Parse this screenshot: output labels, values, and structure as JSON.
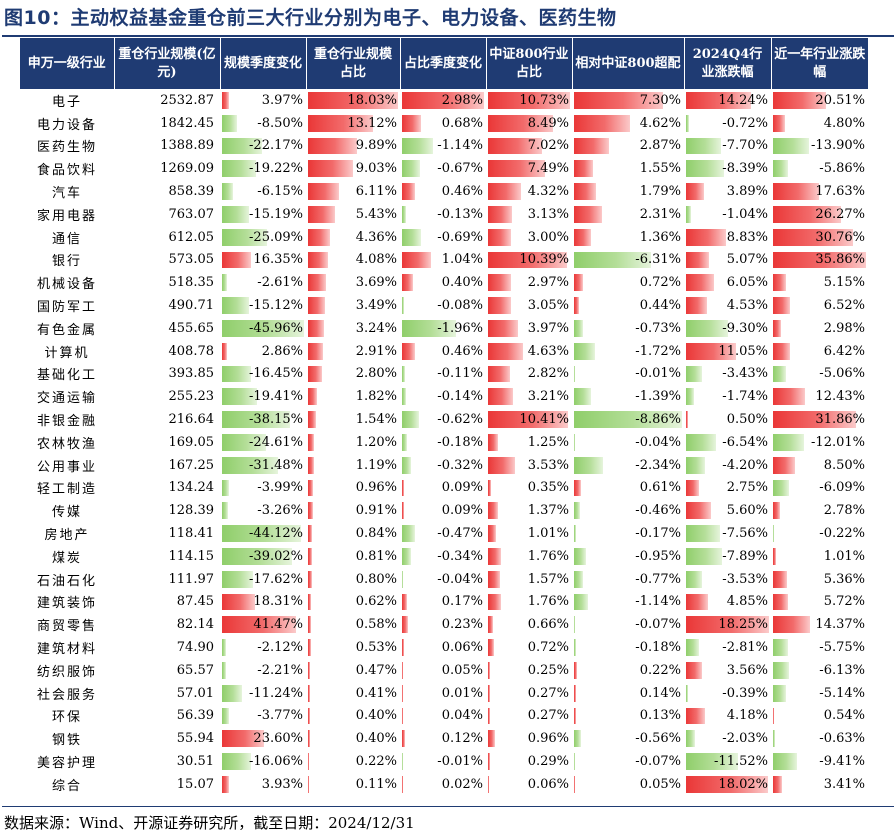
{
  "title": "图10：主动权益基金重仓前三大行业分别为电子、电力设备、医药生物",
  "source": "数据来源：Wind、开源证券研究所，截至日期：2024/12/31",
  "colors": {
    "header_bg": "#1f3b73",
    "positive": "#ea3737",
    "negative": "#8fce6a"
  },
  "headers": [
    "申万一级行业",
    "重仓行业规模(亿元)",
    "规模季度变化",
    "重仓行业规模占比",
    "占比季度变化",
    "中证800行业占比",
    "相对中证800超配",
    "2024Q4行业涨跌幅",
    "近一年行业涨跌幅"
  ],
  "rows": [
    [
      "电子",
      "2532.87",
      "3.97%",
      "18.03%",
      "2.98%",
      "10.73%",
      "7.30%",
      "14.24%",
      "20.51%"
    ],
    [
      "电力设备",
      "1842.45",
      "-8.50%",
      "13.12%",
      "0.68%",
      "8.49%",
      "4.62%",
      "-0.72%",
      "4.80%"
    ],
    [
      "医药生物",
      "1388.89",
      "-22.17%",
      "9.89%",
      "-1.14%",
      "7.02%",
      "2.87%",
      "-7.70%",
      "-13.90%"
    ],
    [
      "食品饮料",
      "1269.09",
      "-19.22%",
      "9.03%",
      "-0.67%",
      "7.49%",
      "1.55%",
      "-8.39%",
      "-5.86%"
    ],
    [
      "汽车",
      "858.39",
      "-6.15%",
      "6.11%",
      "0.46%",
      "4.32%",
      "1.79%",
      "3.89%",
      "17.63%"
    ],
    [
      "家用电器",
      "763.07",
      "-15.19%",
      "5.43%",
      "-0.13%",
      "3.13%",
      "2.31%",
      "-1.04%",
      "26.27%"
    ],
    [
      "通信",
      "612.05",
      "-25.09%",
      "4.36%",
      "-0.69%",
      "3.00%",
      "1.36%",
      "8.83%",
      "30.76%"
    ],
    [
      "银行",
      "573.05",
      "16.35%",
      "4.08%",
      "1.04%",
      "10.39%",
      "-6.31%",
      "5.07%",
      "35.86%"
    ],
    [
      "机械设备",
      "518.35",
      "-2.61%",
      "3.69%",
      "0.40%",
      "2.97%",
      "0.72%",
      "6.05%",
      "5.15%"
    ],
    [
      "国防军工",
      "490.71",
      "-15.12%",
      "3.49%",
      "-0.08%",
      "3.05%",
      "0.44%",
      "4.53%",
      "6.52%"
    ],
    [
      "有色金属",
      "455.65",
      "-45.96%",
      "3.24%",
      "-1.96%",
      "3.97%",
      "-0.73%",
      "-9.30%",
      "2.98%"
    ],
    [
      "计算机",
      "408.78",
      "2.86%",
      "2.91%",
      "0.46%",
      "4.63%",
      "-1.72%",
      "11.05%",
      "6.42%"
    ],
    [
      "基础化工",
      "393.85",
      "-16.45%",
      "2.80%",
      "-0.11%",
      "2.82%",
      "-0.01%",
      "-3.43%",
      "-5.06%"
    ],
    [
      "交通运输",
      "255.23",
      "-19.41%",
      "1.82%",
      "-0.14%",
      "3.21%",
      "-1.39%",
      "-1.74%",
      "12.43%"
    ],
    [
      "非银金融",
      "216.64",
      "-38.15%",
      "1.54%",
      "-0.62%",
      "10.41%",
      "-8.86%",
      "0.50%",
      "31.86%"
    ],
    [
      "农林牧渔",
      "169.05",
      "-24.61%",
      "1.20%",
      "-0.18%",
      "1.25%",
      "-0.04%",
      "-6.54%",
      "-12.01%"
    ],
    [
      "公用事业",
      "167.25",
      "-31.48%",
      "1.19%",
      "-0.32%",
      "3.53%",
      "-2.34%",
      "-4.20%",
      "8.50%"
    ],
    [
      "轻工制造",
      "134.24",
      "-3.99%",
      "0.96%",
      "0.09%",
      "0.35%",
      "0.61%",
      "2.75%",
      "-6.09%"
    ],
    [
      "传媒",
      "128.39",
      "-3.26%",
      "0.91%",
      "0.09%",
      "1.37%",
      "-0.46%",
      "5.60%",
      "2.78%"
    ],
    [
      "房地产",
      "118.41",
      "-44.12%",
      "0.84%",
      "-0.47%",
      "1.01%",
      "-0.17%",
      "-7.56%",
      "-0.22%"
    ],
    [
      "煤炭",
      "114.15",
      "-39.02%",
      "0.81%",
      "-0.34%",
      "1.76%",
      "-0.95%",
      "-7.89%",
      "1.01%"
    ],
    [
      "石油石化",
      "111.97",
      "-17.62%",
      "0.80%",
      "-0.04%",
      "1.57%",
      "-0.77%",
      "-3.53%",
      "5.36%"
    ],
    [
      "建筑装饰",
      "87.45",
      "18.31%",
      "0.62%",
      "0.17%",
      "1.76%",
      "-1.14%",
      "4.85%",
      "5.72%"
    ],
    [
      "商贸零售",
      "82.14",
      "41.47%",
      "0.58%",
      "0.23%",
      "0.66%",
      "-0.07%",
      "18.25%",
      "14.37%"
    ],
    [
      "建筑材料",
      "74.90",
      "-2.12%",
      "0.53%",
      "0.06%",
      "0.72%",
      "-0.18%",
      "-2.81%",
      "-5.75%"
    ],
    [
      "纺织服饰",
      "65.57",
      "-2.21%",
      "0.47%",
      "0.05%",
      "0.25%",
      "0.22%",
      "3.56%",
      "-6.13%"
    ],
    [
      "社会服务",
      "57.01",
      "-11.24%",
      "0.41%",
      "0.01%",
      "0.27%",
      "0.14%",
      "-0.39%",
      "-5.14%"
    ],
    [
      "环保",
      "56.39",
      "-3.77%",
      "0.40%",
      "0.04%",
      "0.27%",
      "0.13%",
      "4.18%",
      "0.54%"
    ],
    [
      "钢铁",
      "55.94",
      "23.60%",
      "0.40%",
      "0.12%",
      "0.96%",
      "-0.56%",
      "-2.03%",
      "-0.63%"
    ],
    [
      "美容护理",
      "30.51",
      "-16.06%",
      "0.22%",
      "-0.01%",
      "0.29%",
      "-0.07%",
      "-11.52%",
      "-9.41%"
    ],
    [
      "综合",
      "15.07",
      "3.93%",
      "0.11%",
      "0.02%",
      "0.06%",
      "0.05%",
      "18.02%",
      "3.41%"
    ]
  ]
}
